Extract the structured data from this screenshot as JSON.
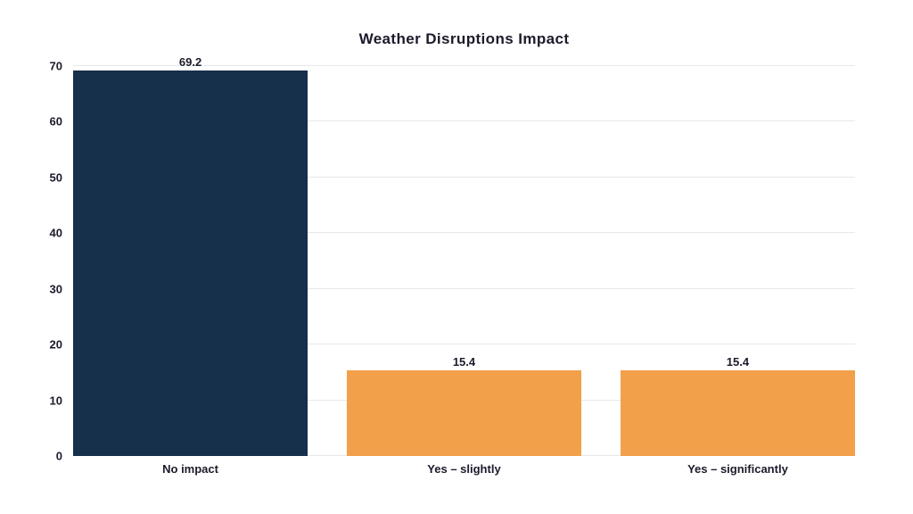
{
  "title": "Weather Disruptions Impact",
  "colors": {
    "navy": "#162F4A",
    "orange": "#F2A04A",
    "grid": "#e8e8e8",
    "text": "#1b1b2b",
    "background": "#ffffff"
  },
  "chart_data": {
    "type": "bar",
    "title": "Weather Disruptions Impact",
    "categories": [
      "No impact",
      "Yes – slightly",
      "Yes – significantly"
    ],
    "values": [
      69.2,
      15.4,
      15.4
    ],
    "value_labels": [
      "69.2",
      "15.4",
      "15.4"
    ],
    "bar_colors": [
      "#162F4A",
      "#F2A04A",
      "#F2A04A"
    ],
    "xlabel": "",
    "ylabel": "",
    "ylim": [
      0,
      70
    ],
    "yticks": [
      0,
      10,
      20,
      30,
      40,
      50,
      60,
      70
    ],
    "grid": "horizontal",
    "legend": "none",
    "bar_width_fraction": 0.3,
    "bar_gap_fraction": 0.05
  }
}
